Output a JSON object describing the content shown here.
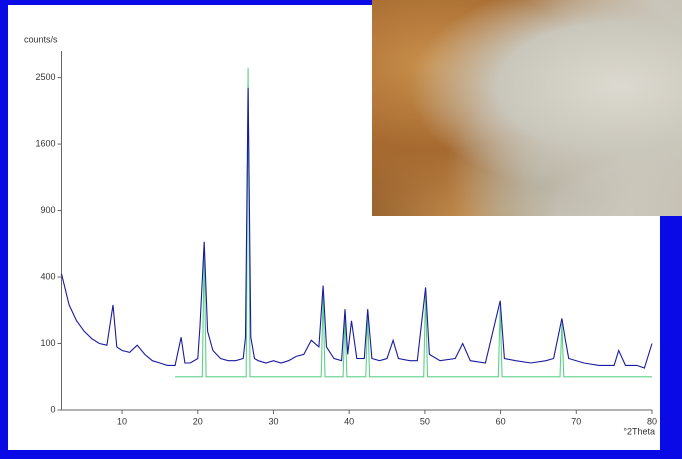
{
  "chart_data": {
    "type": "line",
    "y_label": "counts/s",
    "x_label": "°2Theta",
    "yscale": "sqrt",
    "xlim": [
      2,
      80
    ],
    "ylim": [
      0,
      2916
    ],
    "xticks": [
      10,
      20,
      30,
      40,
      50,
      60,
      70,
      80
    ],
    "yticks": [
      0,
      100,
      400,
      900,
      1600,
      2500
    ],
    "series": [
      {
        "color": "#1a1aa0",
        "x": [
          2,
          3,
          4,
          5,
          6,
          7,
          8,
          8.8,
          9.3,
          10,
          11,
          12,
          13,
          14,
          15,
          16,
          17,
          17.8,
          18.3,
          19,
          20,
          20.3,
          20.85,
          21.3,
          22,
          23,
          24,
          25,
          26,
          26.3,
          26.65,
          27,
          27.5,
          28,
          29,
          30,
          31,
          32,
          33,
          34,
          35,
          36,
          36.55,
          37,
          38,
          39,
          39.45,
          39.8,
          40.3,
          41,
          42,
          42.45,
          43,
          44,
          45,
          45.8,
          46.5,
          48,
          49,
          50.1,
          50.6,
          52,
          54,
          55,
          56,
          58,
          59.95,
          60.5,
          62,
          64,
          66,
          67,
          68.1,
          68.5,
          69,
          71,
          73,
          75,
          75.6,
          76.5,
          78,
          79,
          80
        ],
        "values": [
          420,
          250,
          180,
          140,
          115,
          100,
          95,
          250,
          90,
          80,
          75,
          95,
          70,
          55,
          50,
          45,
          45,
          120,
          50,
          50,
          60,
          160,
          640,
          140,
          80,
          60,
          55,
          55,
          60,
          120,
          2350,
          120,
          60,
          55,
          50,
          55,
          50,
          55,
          65,
          70,
          110,
          90,
          350,
          90,
          60,
          55,
          230,
          70,
          180,
          60,
          60,
          230,
          60,
          55,
          60,
          110,
          60,
          55,
          55,
          340,
          70,
          55,
          60,
          100,
          55,
          50,
          270,
          60,
          55,
          50,
          55,
          60,
          190,
          120,
          60,
          50,
          45,
          45,
          80,
          45,
          45,
          40,
          100
        ]
      },
      {
        "color": "#5fd08a",
        "x": [
          17,
          20.6,
          20.85,
          21.1,
          26.4,
          26.65,
          26.9,
          36.3,
          36.55,
          36.8,
          39.2,
          39.45,
          39.7,
          42.2,
          42.45,
          42.7,
          49.85,
          50.1,
          50.35,
          59.7,
          59.95,
          60.2,
          67.85,
          68.1,
          68.35,
          80
        ],
        "values": [
          25,
          25,
          600,
          25,
          25,
          2650,
          25,
          25,
          300,
          25,
          25,
          200,
          25,
          25,
          210,
          25,
          25,
          320,
          25,
          25,
          240,
          25,
          25,
          170,
          25,
          25
        ]
      }
    ]
  }
}
